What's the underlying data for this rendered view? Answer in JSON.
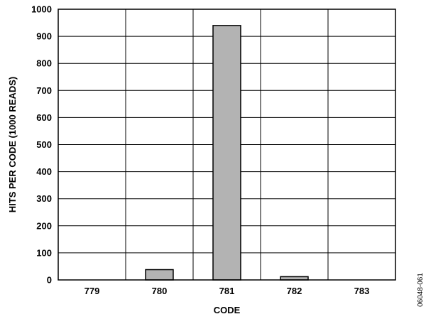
{
  "chart_data": {
    "type": "bar",
    "categories": [
      "779",
      "780",
      "781",
      "782",
      "783"
    ],
    "values": [
      0,
      38,
      940,
      12,
      0
    ],
    "xlabel": "CODE",
    "ylabel": "HITS PER CODE (1000 READS)",
    "ylim": [
      0,
      1000
    ],
    "yticks": [
      0,
      100,
      200,
      300,
      400,
      500,
      600,
      700,
      800,
      900,
      1000
    ],
    "grid": true,
    "bar_color": "#b3b3b3"
  },
  "figure_id": "06048-061"
}
